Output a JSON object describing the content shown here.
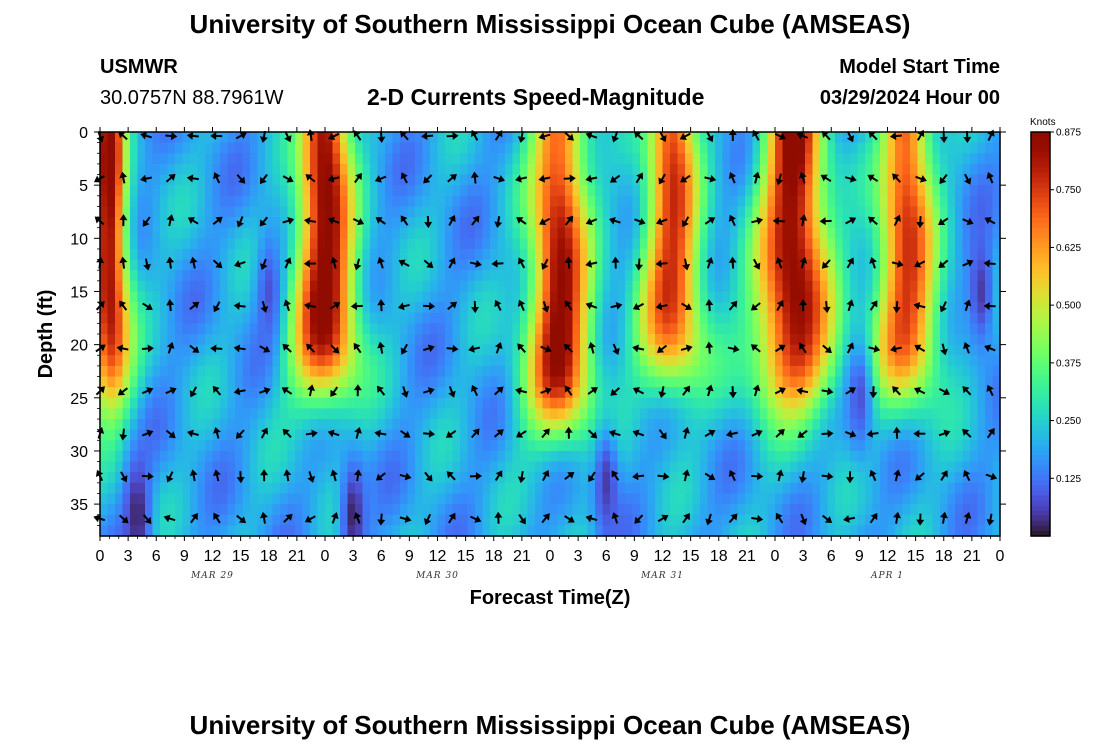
{
  "header": {
    "title": "University of Southern Mississippi Ocean Cube (AMSEAS)",
    "station": "USMWR",
    "coords": "30.0757N  88.7961W",
    "product": "2-D Currents Speed-Magnitude",
    "start_label": "Model Start Time",
    "start_value": "03/29/2024 Hour 00"
  },
  "footer": {
    "title": "University of Southern Mississippi Ocean Cube (AMSEAS)"
  },
  "colors": {
    "low": "#30123b",
    "high": "#7a0403",
    "arrow": "#000000"
  },
  "chart_data": {
    "type": "heatmap",
    "title": "2-D Currents Speed-Magnitude",
    "xlabel": "Forecast Time(Z)",
    "ylabel": "Depth (ft)",
    "x_tick_labels": [
      "0",
      "3",
      "6",
      "9",
      "12",
      "15",
      "18",
      "21",
      "0",
      "3",
      "6",
      "9",
      "12",
      "15",
      "18",
      "21",
      "0",
      "3",
      "6",
      "9",
      "12",
      "15",
      "18",
      "21",
      "0",
      "3",
      "6",
      "9",
      "12",
      "15",
      "18",
      "21",
      "0"
    ],
    "date_labels": [
      "MAR 29",
      "MAR 30",
      "MAR 31",
      "APR 1"
    ],
    "date_label_hours": [
      12,
      36,
      60,
      84
    ],
    "xlim": [
      0,
      96
    ],
    "y_ticks": [
      0,
      5,
      10,
      15,
      20,
      25,
      30,
      35
    ],
    "ylim": [
      0,
      38
    ],
    "colorbar": {
      "unit": "Knots",
      "range": [
        0,
        0.875
      ],
      "tick_labels": [
        "0.875",
        "0.750",
        "0.625",
        "0.500",
        "0.375",
        "0.250",
        "0.125"
      ],
      "tick_values": [
        0.875,
        0.75,
        0.625,
        0.5,
        0.375,
        0.25,
        0.125
      ]
    },
    "speed_peaks": [
      {
        "hour": 1,
        "speed": 0.85,
        "half_width_hr": 1.6,
        "depth_reach_ft": 25
      },
      {
        "hour": 24,
        "speed": 0.87,
        "half_width_hr": 2.5,
        "depth_reach_ft": 24
      },
      {
        "hour": 49,
        "speed": 0.87,
        "half_width_hr": 3.0,
        "depth_reach_ft": 27,
        "core_depth_ft": 13
      },
      {
        "hour": 61,
        "speed": 0.75,
        "half_width_hr": 2.5,
        "depth_reach_ft": 23
      },
      {
        "hour": 74,
        "speed": 0.87,
        "half_width_hr": 3.0,
        "depth_reach_ft": 25
      },
      {
        "hour": 86,
        "speed": 0.75,
        "half_width_hr": 2.5,
        "depth_reach_ft": 24
      }
    ],
    "speed_lows": [
      {
        "hour": 4,
        "depth_ft": 36,
        "speed": 0.02
      },
      {
        "hour": 27,
        "depth_ft": 36,
        "speed": 0.02
      },
      {
        "hour": 18,
        "depth_ft": 15,
        "speed": 0.08
      },
      {
        "hour": 54,
        "depth_ft": 33,
        "speed": 0.05
      },
      {
        "hour": 81,
        "depth_ft": 25,
        "speed": 0.08
      },
      {
        "hour": 94,
        "depth_ft": 15,
        "speed": 0.05
      }
    ],
    "vector_grid": {
      "hours_step": 2.5,
      "depths_ft": [
        0,
        4,
        8,
        12,
        16,
        20,
        24,
        28,
        32,
        36
      ]
    }
  }
}
